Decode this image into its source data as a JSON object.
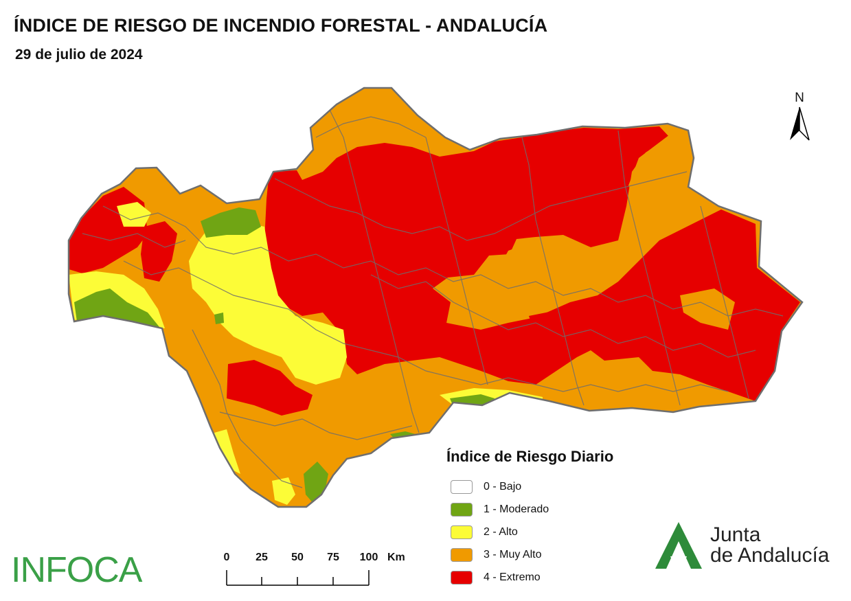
{
  "title": "ÍNDICE DE RIESGO DE INCENDIO FORESTAL - ANDALUCÍA",
  "date": "29 de julio de 2024",
  "north_label": "N",
  "legend": {
    "title": "Índice de Riesgo Diario",
    "items": [
      {
        "label": "0 - Bajo",
        "color": "#ffffff"
      },
      {
        "label": "1 - Moderado",
        "color": "#70a514"
      },
      {
        "label": "2 - Alto",
        "color": "#fcfc37"
      },
      {
        "label": "3 - Muy Alto",
        "color": "#f09a00"
      },
      {
        "label": "4 - Extremo",
        "color": "#e60000"
      }
    ]
  },
  "scale_bar": {
    "ticks": [
      "0",
      "25",
      "50",
      "75",
      "100"
    ],
    "unit": "Km"
  },
  "infoca_logo": "INFOCA",
  "junta_logo": {
    "line1": "Junta",
    "line2": "de Andalucía",
    "color": "#2e8b3a"
  },
  "colors": {
    "border": "#6e6e6e",
    "infoca": "#3aa047"
  }
}
